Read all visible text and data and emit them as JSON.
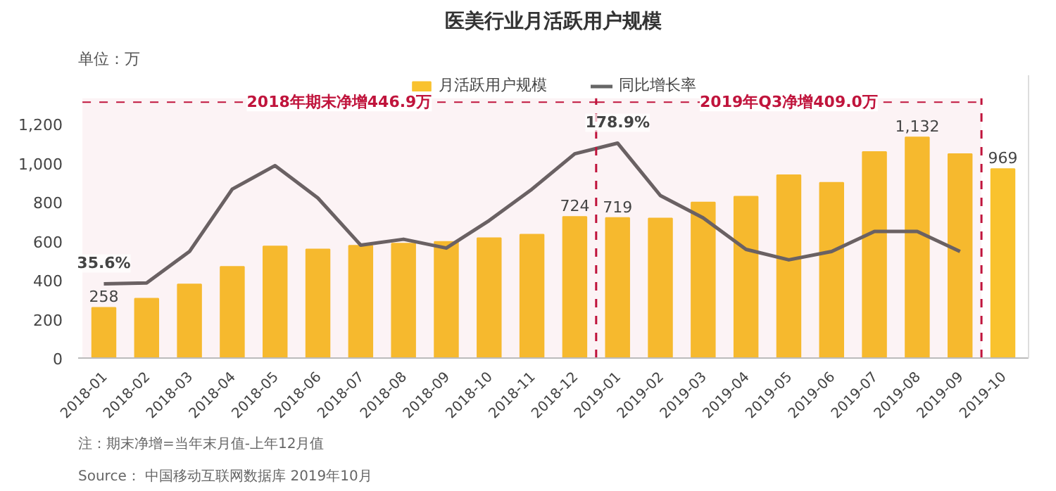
{
  "chart_data": {
    "type": "bar",
    "title": "医美行业月活跃用户规模",
    "ylabel": "单位：万",
    "categories": [
      "2018-01",
      "2018-02",
      "2018-03",
      "2018-04",
      "2018-05",
      "2018-06",
      "2018-07",
      "2018-08",
      "2018-09",
      "2018-10",
      "2018-11",
      "2018-12",
      "2019-01",
      "2019-02",
      "2019-03",
      "2019-04",
      "2019-05",
      "2019-06",
      "2019-07",
      "2019-08",
      "2019-09",
      "2019-10"
    ],
    "series": [
      {
        "name": "月活跃用户规模",
        "color": "#f9c22e",
        "values": [
          258,
          305,
          378,
          468,
          573,
          557,
          576,
          587,
          596,
          615,
          633,
          724,
          719,
          716,
          798,
          828,
          938,
          899,
          1057,
          1132,
          1046,
          969
        ],
        "value_labels": [
          "258",
          null,
          null,
          null,
          null,
          null,
          null,
          null,
          null,
          null,
          null,
          "724",
          "719",
          null,
          null,
          null,
          null,
          null,
          null,
          "1,132",
          null,
          "969"
        ]
      },
      {
        "name": "同比增长率",
        "type": "line",
        "axis": "y2",
        "color": "#666666",
        "values": [
          35.6,
          36.5,
          68.5,
          132,
          156,
          123,
          75,
          81,
          72,
          100,
          132,
          168,
          178.9,
          125.5,
          102.7,
          70.7,
          60,
          68.5,
          89,
          89,
          68.5,
          null
        ],
        "value_labels": [
          "35.6%",
          null,
          null,
          null,
          null,
          null,
          null,
          null,
          null,
          null,
          null,
          null,
          "178.9%",
          null,
          null,
          null,
          null,
          null,
          null,
          null,
          null,
          null
        ]
      }
    ],
    "ylim": [
      0,
      1450
    ],
    "yticks": [
      0,
      {
        "value": 200,
        "label": "200"
      },
      {
        "value": 400,
        "label": "400"
      },
      {
        "value": 600,
        "label": "600"
      },
      {
        "value": 800,
        "label": "800"
      },
      {
        "value": 1000,
        "label": "1,000"
      },
      {
        "value": 1200,
        "label": "1,200"
      }
    ],
    "y2lim": [
      -40,
      248
    ],
    "tick_labels": "xy",
    "grid": false,
    "legend": "top",
    "line_style": "solid",
    "bands": [
      {
        "axis": "x",
        "from": "2018-01",
        "to": "2018-12",
        "label": "2018年期末净增446.9万",
        "color": "#c0143c"
      },
      {
        "axis": "x",
        "from": "2019-01",
        "to": "2019-09",
        "label": "2019年Q3净增409.0万",
        "color": "#c0143c"
      }
    ],
    "annotations": [
      "Source： 中国移动互联网数据库 2019年10月",
      "注：期末净增=当年末月值-上年12月值"
    ]
  }
}
